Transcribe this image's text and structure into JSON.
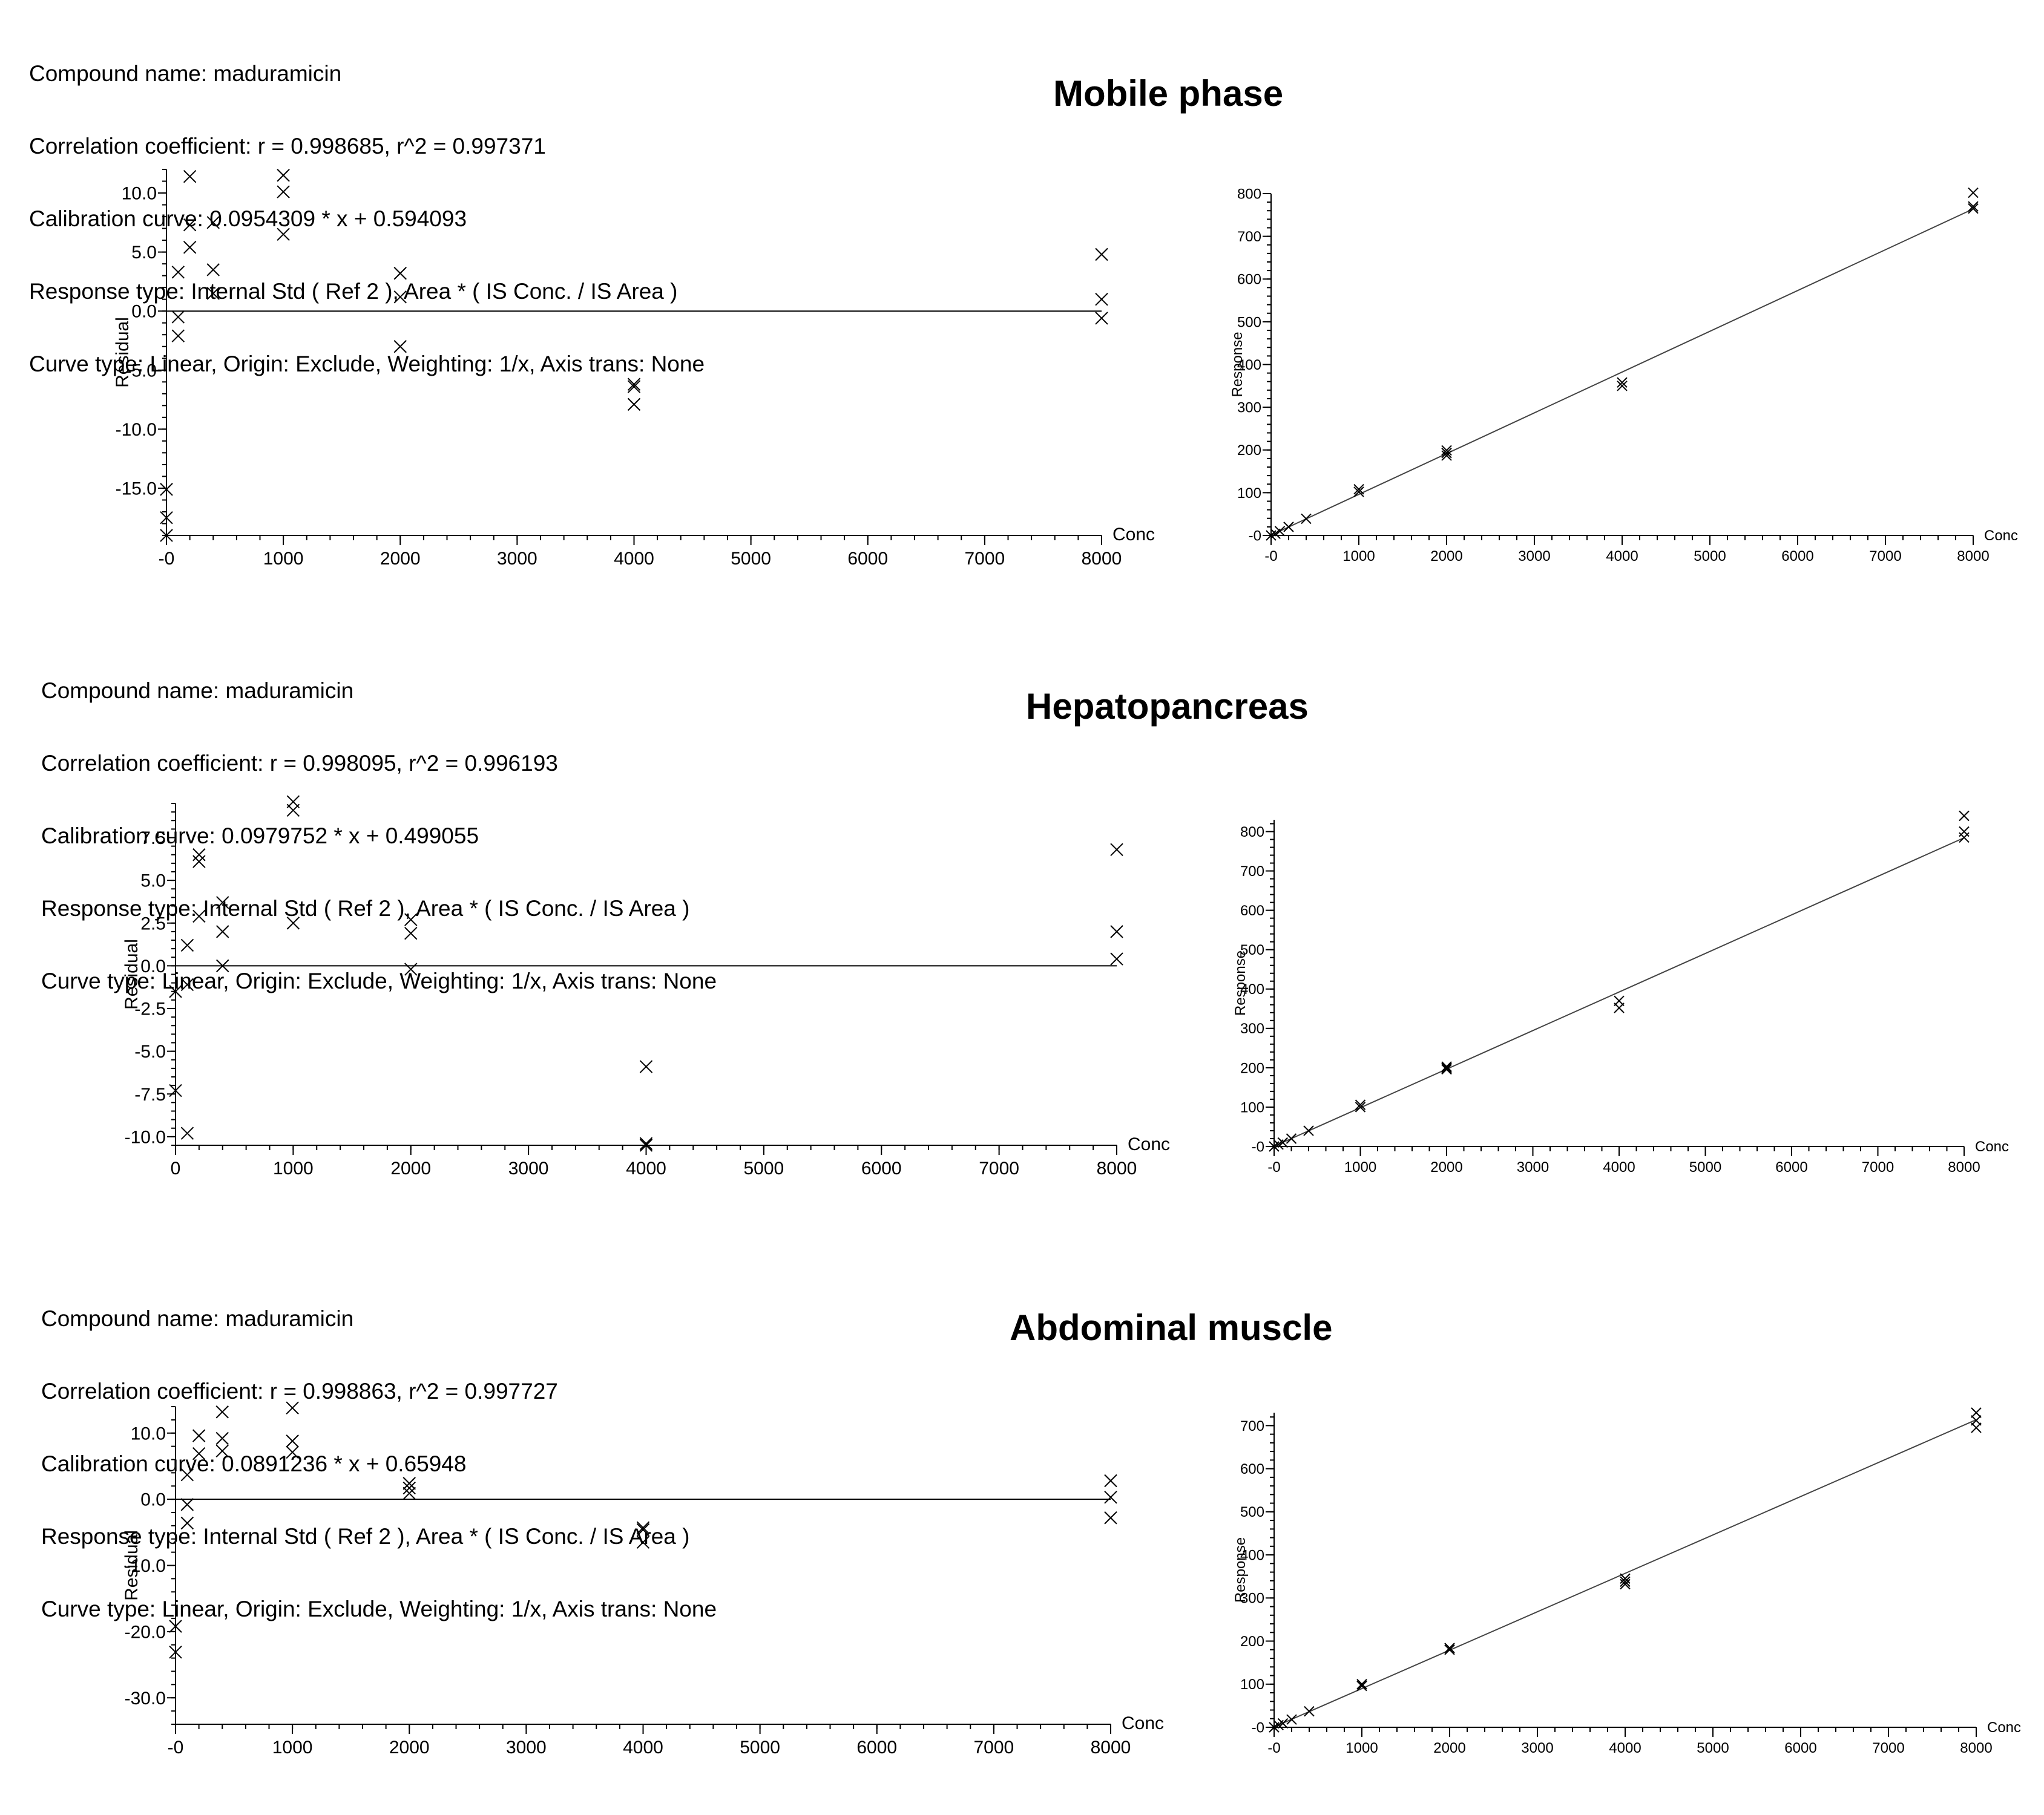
{
  "panels": [
    {
      "title": "Mobile phase",
      "info": {
        "compound": "Compound name: maduramicin",
        "correlation": "Correlation coefficient: r = 0.998685, r^2 = 0.997371",
        "calibration": "Calibration curve: 0.0954309 * x + 0.594093",
        "response_type": "Response type: Internal Std ( Ref 2 ), Area * ( IS Conc. / IS Area )",
        "curve_type": "Curve type: Linear, Origin: Exclude, Weighting: 1/x, Axis trans: None"
      }
    },
    {
      "title": "Hepatopancreas",
      "info": {
        "compound": "Compound name: maduramicin",
        "correlation": "Correlation coefficient: r = 0.998095, r^2 = 0.996193",
        "calibration": "Calibration curve: 0.0979752 * x + 0.499055",
        "response_type": "Response type: Internal Std ( Ref 2 ), Area * ( IS Conc. / IS Area )",
        "curve_type": "Curve type: Linear, Origin: Exclude, Weighting: 1/x, Axis trans: None"
      }
    },
    {
      "title": "Abdominal muscle",
      "info": {
        "compound": "Compound name: maduramicin",
        "correlation": "Correlation coefficient: r = 0.998863, r^2 = 0.997727",
        "calibration": "Calibration curve: 0.0891236 * x + 0.65948",
        "response_type": "Response type: Internal Std ( Ref 2 ), Area * ( IS Conc. / IS Area )",
        "curve_type": "Curve type: Linear, Origin: Exclude, Weighting: 1/x, Axis trans: None"
      }
    }
  ],
  "chart_data": [
    {
      "type": "scatter",
      "panel": 0,
      "xlabel": "Conc",
      "ylabel": "Residual",
      "xlim": [
        0,
        8000
      ],
      "ylim": [
        -19,
        12
      ],
      "xticks": [
        0,
        1000,
        2000,
        3000,
        4000,
        5000,
        6000,
        7000,
        8000
      ],
      "xtick_labels": [
        "-0",
        "1000",
        "2000",
        "3000",
        "4000",
        "5000",
        "6000",
        "7000",
        "8000"
      ],
      "yticks": [
        10,
        5,
        0,
        -5,
        -10,
        -15
      ],
      "ytick_labels": [
        "10.0",
        "5.0",
        "0.0",
        "-5.0",
        "-10.0",
        "-15.0"
      ],
      "zero_line": true,
      "points": [
        [
          0,
          -15.1
        ],
        [
          0,
          -17.5
        ],
        [
          0,
          -19
        ],
        [
          100,
          3.3
        ],
        [
          100,
          -0.5
        ],
        [
          100,
          -2.1
        ],
        [
          200,
          11.4
        ],
        [
          200,
          7.3
        ],
        [
          200,
          5.4
        ],
        [
          400,
          7.5
        ],
        [
          400,
          3.5
        ],
        [
          400,
          1.5
        ],
        [
          1000,
          11.5
        ],
        [
          1000,
          10.1
        ],
        [
          1000,
          6.5
        ],
        [
          2000,
          3.2
        ],
        [
          2000,
          1.2
        ],
        [
          2000,
          -3.0
        ],
        [
          4000,
          -6.2
        ],
        [
          4000,
          -6.4
        ],
        [
          4000,
          -7.9
        ],
        [
          8000,
          4.8
        ],
        [
          8000,
          1.0
        ],
        [
          8000,
          -0.6
        ]
      ]
    },
    {
      "type": "scatter",
      "panel": 0,
      "xlabel": "Conc",
      "ylabel": "Response",
      "xlim": [
        0,
        8000
      ],
      "ylim": [
        0,
        800
      ],
      "xticks": [
        0,
        1000,
        2000,
        3000,
        4000,
        5000,
        6000,
        7000,
        8000
      ],
      "xtick_labels": [
        "-0",
        "1000",
        "2000",
        "3000",
        "4000",
        "5000",
        "6000",
        "7000",
        "8000"
      ],
      "yticks": [
        0,
        100,
        200,
        300,
        400,
        500,
        600,
        700,
        800
      ],
      "ytick_labels": [
        "-0",
        "100",
        "200",
        "300",
        "400",
        "500",
        "600",
        "700",
        "800"
      ],
      "fit": {
        "slope": 0.0954309,
        "intercept": 0.594093
      },
      "points": [
        [
          0,
          0
        ],
        [
          50,
          4
        ],
        [
          100,
          10
        ],
        [
          200,
          20
        ],
        [
          400,
          39
        ],
        [
          1000,
          102
        ],
        [
          1000,
          108
        ],
        [
          2000,
          187
        ],
        [
          2000,
          193
        ],
        [
          2000,
          199
        ],
        [
          4000,
          350
        ],
        [
          4000,
          358
        ],
        [
          8000,
          765
        ],
        [
          8000,
          770
        ],
        [
          8000,
          802
        ]
      ]
    },
    {
      "type": "scatter",
      "panel": 1,
      "xlabel": "Conc",
      "ylabel": "Residual",
      "xlim": [
        0,
        8000
      ],
      "ylim": [
        -10.5,
        9.5
      ],
      "xticks": [
        0,
        1000,
        2000,
        3000,
        4000,
        5000,
        6000,
        7000,
        8000
      ],
      "xtick_labels": [
        "0",
        "1000",
        "2000",
        "3000",
        "4000",
        "5000",
        "6000",
        "7000",
        "8000"
      ],
      "yticks": [
        7.5,
        5.0,
        2.5,
        0,
        -2.5,
        -5.0,
        -7.5,
        -10.0
      ],
      "ytick_labels": [
        "7.5",
        "5.0",
        "2.5",
        "0.0",
        "-2.5",
        "-5.0",
        "-7.5",
        "-10.0"
      ],
      "zero_line": true,
      "points": [
        [
          0,
          -1.5
        ],
        [
          0,
          -7.3
        ],
        [
          100,
          1.2
        ],
        [
          100,
          -1.1
        ],
        [
          100,
          -9.8
        ],
        [
          200,
          6.5
        ],
        [
          200,
          6.1
        ],
        [
          200,
          2.9
        ],
        [
          400,
          3.7
        ],
        [
          400,
          2.0
        ],
        [
          400,
          0.0
        ],
        [
          1000,
          9.6
        ],
        [
          1000,
          9.1
        ],
        [
          1000,
          2.5
        ],
        [
          2000,
          2.7
        ],
        [
          2000,
          1.9
        ],
        [
          2000,
          -0.2
        ],
        [
          4000,
          -5.9
        ],
        [
          4000,
          -10.4
        ],
        [
          4000,
          -10.5
        ],
        [
          8000,
          6.8
        ],
        [
          8000,
          2.0
        ],
        [
          8000,
          0.4
        ]
      ]
    },
    {
      "type": "scatter",
      "panel": 1,
      "xlabel": "Conc",
      "ylabel": "Response",
      "xlim": [
        0,
        8000
      ],
      "ylim": [
        0,
        830
      ],
      "xticks": [
        0,
        1000,
        2000,
        3000,
        4000,
        5000,
        6000,
        7000,
        8000
      ],
      "xtick_labels": [
        "-0",
        "1000",
        "2000",
        "3000",
        "4000",
        "5000",
        "6000",
        "7000",
        "8000"
      ],
      "yticks": [
        0,
        100,
        200,
        300,
        400,
        500,
        600,
        700,
        800
      ],
      "ytick_labels": [
        "-0",
        "100",
        "200",
        "300",
        "400",
        "500",
        "600",
        "700",
        "800"
      ],
      "fit": {
        "slope": 0.0979752,
        "intercept": 0.499055
      },
      "points": [
        [
          0,
          0
        ],
        [
          50,
          5
        ],
        [
          100,
          10
        ],
        [
          200,
          20
        ],
        [
          400,
          40
        ],
        [
          1000,
          100
        ],
        [
          1000,
          106
        ],
        [
          2000,
          196
        ],
        [
          2000,
          200
        ],
        [
          2000,
          203
        ],
        [
          4000,
          352
        ],
        [
          4000,
          370
        ],
        [
          8000,
          785
        ],
        [
          8000,
          800
        ],
        [
          8000,
          840
        ]
      ]
    },
    {
      "type": "scatter",
      "panel": 2,
      "xlabel": "Conc",
      "ylabel": "Residual",
      "xlim": [
        0,
        8000
      ],
      "ylim": [
        -34,
        14
      ],
      "xticks": [
        0,
        1000,
        2000,
        3000,
        4000,
        5000,
        6000,
        7000,
        8000
      ],
      "xtick_labels": [
        "-0",
        "1000",
        "2000",
        "3000",
        "4000",
        "5000",
        "6000",
        "7000",
        "8000"
      ],
      "yticks": [
        10,
        0,
        -10,
        -20,
        -30
      ],
      "ytick_labels": [
        "10.0",
        "0.0",
        "-10.0",
        "-20.0",
        "-30.0"
      ],
      "zero_line": true,
      "points": [
        [
          0,
          -19.2
        ],
        [
          0,
          -23.1
        ],
        [
          100,
          3.7
        ],
        [
          100,
          -0.8
        ],
        [
          100,
          -3.6
        ],
        [
          200,
          9.6
        ],
        [
          200,
          6.9
        ],
        [
          400,
          13.2
        ],
        [
          400,
          9.2
        ],
        [
          400,
          7.3
        ],
        [
          1000,
          13.8
        ],
        [
          1000,
          8.8
        ],
        [
          1000,
          7.1
        ],
        [
          2000,
          2.4
        ],
        [
          2000,
          1.7
        ],
        [
          2000,
          0.9
        ],
        [
          4000,
          -4.3
        ],
        [
          4000,
          -4.6
        ],
        [
          4000,
          -6.5
        ],
        [
          8000,
          2.8
        ],
        [
          8000,
          0.3
        ],
        [
          8000,
          -2.8
        ]
      ]
    },
    {
      "type": "scatter",
      "panel": 2,
      "xlabel": "Conc",
      "ylabel": "Response",
      "xlim": [
        0,
        8000
      ],
      "ylim": [
        0,
        730
      ],
      "xticks": [
        0,
        1000,
        2000,
        3000,
        4000,
        5000,
        6000,
        7000,
        8000
      ],
      "xtick_labels": [
        "-0",
        "1000",
        "2000",
        "3000",
        "4000",
        "5000",
        "6000",
        "7000",
        "8000"
      ],
      "yticks": [
        0,
        100,
        200,
        300,
        400,
        500,
        600,
        700
      ],
      "ytick_labels": [
        "-0",
        "100",
        "200",
        "300",
        "400",
        "500",
        "600",
        "700"
      ],
      "fit": {
        "slope": 0.0891236,
        "intercept": 0.65948
      },
      "points": [
        [
          0,
          0
        ],
        [
          50,
          5
        ],
        [
          100,
          9
        ],
        [
          200,
          18
        ],
        [
          400,
          37
        ],
        [
          1000,
          96
        ],
        [
          1000,
          100
        ],
        [
          2000,
          180
        ],
        [
          2000,
          184
        ],
        [
          4000,
          332
        ],
        [
          4000,
          338
        ],
        [
          4000,
          345
        ],
        [
          8000,
          695
        ],
        [
          8000,
          712
        ],
        [
          8000,
          730
        ]
      ]
    }
  ]
}
